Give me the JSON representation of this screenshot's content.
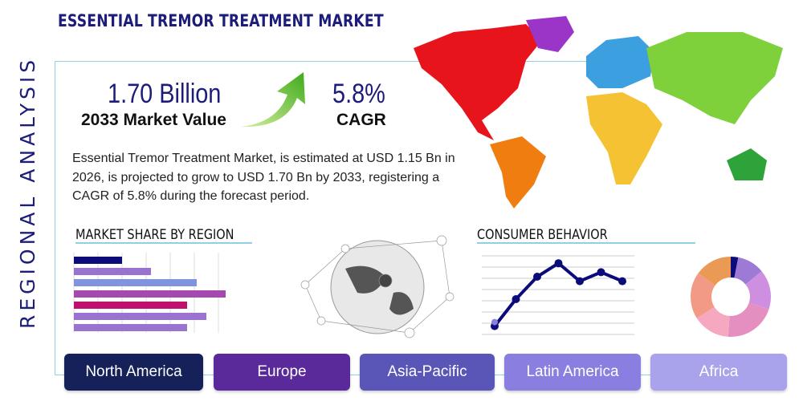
{
  "title": "ESSENTIAL TREMOR TREATMENT MARKET",
  "side_label": "REGIONAL ANALYSIS",
  "market_value": {
    "value": "1.70 Billion",
    "label": "2033 Market Value"
  },
  "cagr": {
    "value": "5.8%",
    "label": "CAGR"
  },
  "description": "Essential Tremor Treatment Market, is estimated at USD 1.15 Bn in 2026, is projected to grow to USD 1.70 Bn by 2033, registering a CAGR of 5.8% during the forecast period.",
  "sections": {
    "market_share": "MARKET SHARE BY REGION",
    "consumer": "CONSUMER BEHAVIOR"
  },
  "regions": [
    {
      "label": "North America",
      "color": "#16215a"
    },
    {
      "label": "Europe",
      "color": "#5a2a9a"
    },
    {
      "label": "Asia-Pacific",
      "color": "#5a56b8"
    },
    {
      "label": "Latin America",
      "color": "#8a7fe0"
    },
    {
      "label": "Africa",
      "color": "#a9a3ec"
    }
  ],
  "chart_data": [
    {
      "type": "bar",
      "orientation": "horizontal",
      "values": [
        2.0,
        3.2,
        5.1,
        6.3,
        4.7,
        5.5,
        4.7
      ],
      "colors": [
        "#0b0b7a",
        "#9a72d0",
        "#7f93de",
        "#a548b0",
        "#c0106e",
        "#9a72d0",
        "#9a72d0"
      ],
      "grid": true
    },
    {
      "type": "line",
      "values": [
        0.6,
        3.0,
        5.0,
        6.2,
        4.6,
        5.4,
        4.6
      ],
      "color": "#0b0b7a",
      "grid": true
    },
    {
      "type": "pie",
      "donut": true,
      "values": [
        3,
        11,
        16,
        21,
        15,
        19,
        15
      ],
      "colors": [
        "#0b0b7a",
        "#9d7ad6",
        "#cf8fe0",
        "#e58fc0",
        "#f6a8c0",
        "#f39a86",
        "#eb9a56"
      ]
    }
  ],
  "map_colors": {
    "north_america": "#e8141c",
    "south_america": "#f07d10",
    "europe": "#3b9fe0",
    "asia": "#7fd13b",
    "africa": "#f5c234",
    "oceania": "#2ea33a",
    "greenland": "#9b35c8"
  }
}
